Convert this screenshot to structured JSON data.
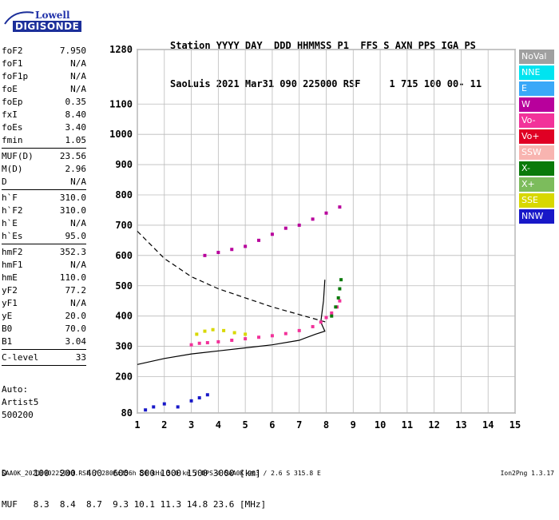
{
  "logo": {
    "line1": "Lowell",
    "line2": "DIGISONDE"
  },
  "header": {
    "line1": "Station YYYY DAY  DDD HHMMSS P1  FFS S AXN PPS IGA PS",
    "line2": "SaoLuis 2021 Mar31 090 225000 RSF     1 715 100 00- 11"
  },
  "params": [
    {
      "k": "foF2",
      "v": "7.950"
    },
    {
      "k": "foF1",
      "v": "N/A"
    },
    {
      "k": "foF1p",
      "v": "N/A"
    },
    {
      "k": "foE",
      "v": "N/A"
    },
    {
      "k": "foEp",
      "v": "0.35"
    },
    {
      "k": "fxI",
      "v": "8.40"
    },
    {
      "k": "foEs",
      "v": "3.40"
    },
    {
      "k": "fmin",
      "v": "1.05",
      "sep": true
    },
    {
      "k": "MUF(D)",
      "v": "23.56"
    },
    {
      "k": "M(D)",
      "v": "2.96"
    },
    {
      "k": "D",
      "v": "N/A",
      "sep": true
    },
    {
      "k": "h`F",
      "v": "310.0"
    },
    {
      "k": "h`F2",
      "v": "310.0"
    },
    {
      "k": "h`E",
      "v": "N/A"
    },
    {
      "k": "h`Es",
      "v": "95.0",
      "sep": true
    },
    {
      "k": "hmF2",
      "v": "352.3"
    },
    {
      "k": "hmF1",
      "v": "N/A"
    },
    {
      "k": "hmE",
      "v": "110.0"
    },
    {
      "k": "yF2",
      "v": "77.2"
    },
    {
      "k": "yF1",
      "v": "N/A"
    },
    {
      "k": "yE",
      "v": "20.0"
    },
    {
      "k": "B0",
      "v": "70.0"
    },
    {
      "k": "B1",
      "v": "3.04",
      "sep": true
    },
    {
      "k": "C-level",
      "v": "33",
      "sep": true
    }
  ],
  "auto": {
    "line1": "Auto:",
    "line2": "Artist5",
    "line3": "500200"
  },
  "legend": [
    {
      "label": "NoVal",
      "color": "#a0a0a0"
    },
    {
      "label": "NNE",
      "color": "#00e4f0"
    },
    {
      "label": "E",
      "color": "#3aa8f8"
    },
    {
      "label": "W",
      "color": "#b8009c"
    },
    {
      "label": "Vo-",
      "color": "#f2329a"
    },
    {
      "label": "Vo+",
      "color": "#e00024"
    },
    {
      "label": "SSW",
      "color": "#f8b4b0"
    },
    {
      "label": "X-",
      "color": "#0a7a0a"
    },
    {
      "label": "X+",
      "color": "#7cbc5c"
    },
    {
      "label": "SSE",
      "color": "#d8d800"
    },
    {
      "label": "NNW",
      "color": "#1818c8"
    }
  ],
  "muf_table": {
    "line1": "D     100  200  400  600  800 1000 1500 3000 [km]",
    "line2": "MUF   8.3  8.4  8.7  9.3 10.1 11.3 14.8 23.6 [MHz]"
  },
  "footer": "SAA0K_2021090225000.RSF / 280fx256h 50 kHs 5.0 km / DPS-4 SAA0K 903 / 2.6 S 315.8 E",
  "version": "Ion2Png 1.3.17",
  "chart_data": {
    "type": "scatter",
    "xlim": [
      1,
      15
    ],
    "ylim": [
      80,
      1280
    ],
    "x_ticks": [
      1,
      2,
      3,
      4,
      5,
      6,
      7,
      8,
      9,
      10,
      11,
      12,
      13,
      14,
      15
    ],
    "y_ticks": [
      80,
      200,
      300,
      400,
      500,
      600,
      700,
      800,
      900,
      1000,
      1100,
      1280
    ],
    "grid": true,
    "series": [
      {
        "name": "trace_F2",
        "color": "#f2329a",
        "points": [
          [
            3.0,
            305
          ],
          [
            3.3,
            310
          ],
          [
            3.6,
            312
          ],
          [
            4.0,
            315
          ],
          [
            4.5,
            320
          ],
          [
            5.0,
            325
          ],
          [
            5.5,
            330
          ],
          [
            6.0,
            335
          ],
          [
            6.5,
            342
          ],
          [
            7.0,
            352
          ],
          [
            7.5,
            365
          ],
          [
            7.8,
            380
          ],
          [
            8.0,
            395
          ],
          [
            8.2,
            410
          ],
          [
            8.4,
            430
          ],
          [
            8.5,
            450
          ]
        ]
      },
      {
        "name": "trace_Es",
        "color": "#d8d800",
        "points": [
          [
            3.2,
            340
          ],
          [
            3.5,
            350
          ],
          [
            3.8,
            355
          ],
          [
            4.2,
            352
          ],
          [
            4.6,
            345
          ],
          [
            5.0,
            340
          ]
        ]
      },
      {
        "name": "trace_X",
        "color": "#0a7a0a",
        "points": [
          [
            8.2,
            400
          ],
          [
            8.35,
            430
          ],
          [
            8.45,
            460
          ],
          [
            8.5,
            490
          ],
          [
            8.55,
            520
          ]
        ]
      },
      {
        "name": "trace_oblique",
        "color": "#b8009c",
        "points": [
          [
            3.5,
            600
          ],
          [
            4.0,
            610
          ],
          [
            4.5,
            620
          ],
          [
            5.0,
            630
          ],
          [
            5.5,
            650
          ],
          [
            6.0,
            670
          ],
          [
            6.5,
            690
          ],
          [
            7.0,
            700
          ],
          [
            7.5,
            720
          ],
          [
            8.0,
            740
          ],
          [
            8.5,
            760
          ]
        ]
      },
      {
        "name": "trace_low",
        "color": "#1818c8",
        "points": [
          [
            1.3,
            90
          ],
          [
            1.6,
            100
          ],
          [
            2.0,
            110
          ],
          [
            2.5,
            100
          ],
          [
            3.0,
            120
          ],
          [
            3.3,
            130
          ],
          [
            3.6,
            140
          ]
        ]
      }
    ],
    "curves": [
      {
        "name": "profile_solid",
        "style": "solid",
        "points": [
          [
            1,
            240
          ],
          [
            2,
            260
          ],
          [
            3,
            275
          ],
          [
            4,
            285
          ],
          [
            5,
            295
          ],
          [
            6,
            305
          ],
          [
            7,
            320
          ],
          [
            7.6,
            340
          ],
          [
            7.95,
            350
          ],
          [
            7.8,
            380
          ],
          [
            7.9,
            450
          ],
          [
            7.95,
            520
          ]
        ]
      },
      {
        "name": "muf_dashed",
        "style": "dashed",
        "points": [
          [
            1,
            680
          ],
          [
            2,
            590
          ],
          [
            3,
            530
          ],
          [
            4,
            490
          ],
          [
            5,
            460
          ],
          [
            6,
            430
          ],
          [
            7,
            405
          ],
          [
            7.6,
            390
          ],
          [
            8.0,
            380
          ]
        ]
      }
    ]
  }
}
